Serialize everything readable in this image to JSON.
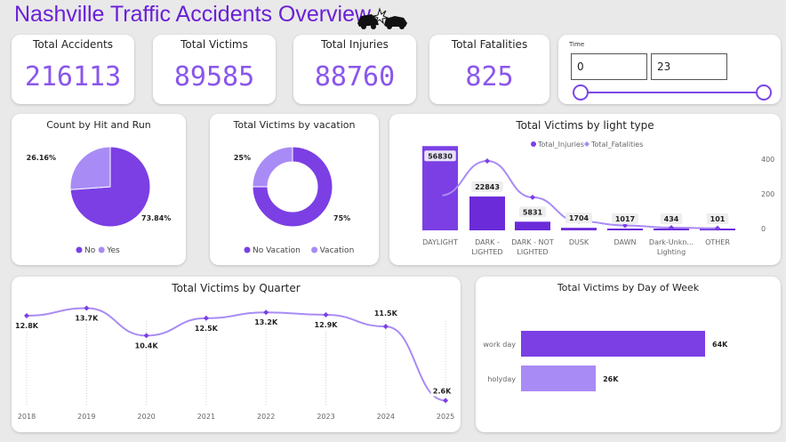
{
  "title": "Nashville Traffic Accidents Overview",
  "icon": "car-crash-icon",
  "kpis": [
    {
      "label": "Total Accidents",
      "value": "216113"
    },
    {
      "label": "Total Victims",
      "value": "89585"
    },
    {
      "label": "Total Injuries",
      "value": "88760"
    },
    {
      "label": "Total Fatalities",
      "value": "825"
    }
  ],
  "slicer": {
    "title": "Time",
    "from": "0",
    "to": "23"
  },
  "colors": {
    "primary": "#7b3fe4",
    "light": "#a98bf5",
    "title": "#6a1fd8",
    "kpi": "#8a56ec"
  },
  "chart_data": [
    {
      "type": "pie",
      "title": "Count by Hit and Run",
      "categories": [
        "No",
        "Yes"
      ],
      "values": [
        73.84,
        26.16
      ],
      "labels": [
        "73.84%",
        "26.16%"
      ],
      "legend": [
        "No",
        "Yes"
      ],
      "legend_position": "bottom"
    },
    {
      "type": "pie",
      "title": "Total Victims by vacation",
      "donut": true,
      "categories": [
        "No Vacation",
        "Vacation"
      ],
      "values": [
        75,
        25
      ],
      "labels": [
        "75%",
        "25%"
      ],
      "legend": [
        "No Vacation",
        "Vacation"
      ],
      "legend_position": "bottom"
    },
    {
      "type": "bar",
      "title": "Total Victims by light type",
      "categories": [
        "DAYLIGHT",
        "DARK - LIGHTED",
        "DARK - NOT LIGHTED",
        "DUSK",
        "DAWN",
        "Dark-Unkn... Lighting",
        "OTHER"
      ],
      "series": [
        {
          "name": "Total_Injuries",
          "values": [
            56830,
            22843,
            5831,
            1704,
            1017,
            434,
            101
          ],
          "labels": [
            "56830",
            "22843",
            "5831",
            "1704",
            "1017",
            "434",
            "101"
          ]
        },
        {
          "name": "Total_Fatalities",
          "values": [
            190,
            390,
            180,
            42,
            18,
            5,
            2
          ]
        }
      ],
      "y2_ticks": [
        "400",
        "200",
        "0"
      ],
      "y2lim": [
        0,
        400
      ],
      "legend_position": "top"
    },
    {
      "type": "line",
      "title": "Total Victims by Quarter",
      "x": [
        "2018",
        "2019",
        "2020",
        "2021",
        "2022",
        "2023",
        "2024",
        "2025"
      ],
      "values": [
        12.8,
        13.7,
        10.4,
        12.5,
        13.2,
        12.9,
        11.5,
        2.6
      ],
      "labels": [
        "12.8K",
        "13.7K",
        "10.4K",
        "12.5K",
        "13.2K",
        "12.9K",
        "11.5K",
        "2.6K"
      ]
    },
    {
      "type": "bar",
      "title": "Total Victims by Day of Week",
      "orientation": "horizontal",
      "categories": [
        "work day",
        "holyday"
      ],
      "values": [
        64,
        26
      ],
      "labels": [
        "64K",
        "26K"
      ]
    }
  ]
}
